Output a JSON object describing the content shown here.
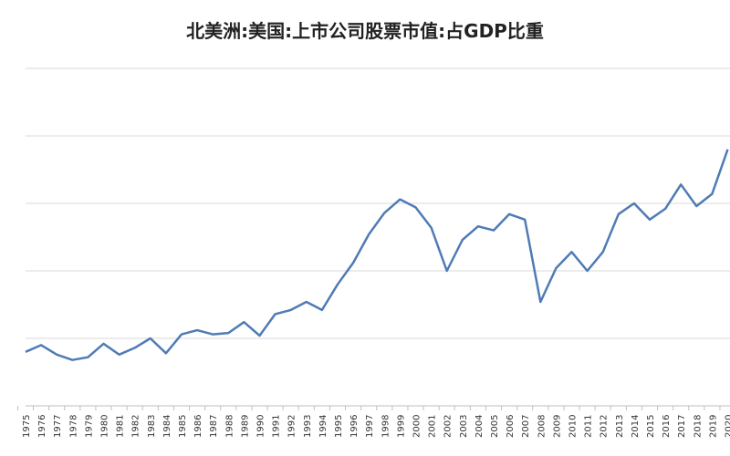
{
  "chart_data": {
    "type": "line",
    "title": "北美洲:美国:上市公司股票市值:占GDP比重",
    "xlabel": "",
    "ylabel": "",
    "ylim": [
      0,
      250
    ],
    "grid": true,
    "legend": "none",
    "colors": {
      "line": "#4f7bb5",
      "grid": "#d9d9d9",
      "axis": "#bfbfbf"
    },
    "x": [
      "1975",
      "1976",
      "1977",
      "1978",
      "1979",
      "1980",
      "1981",
      "1982",
      "1983",
      "1984",
      "1985",
      "1986",
      "1987",
      "1988",
      "1989",
      "1990",
      "1991",
      "1992",
      "1993",
      "1994",
      "1995",
      "1996",
      "1997",
      "1998",
      "1999",
      "2000",
      "2001",
      "2002",
      "2003",
      "2004",
      "2005",
      "2006",
      "2007",
      "2008",
      "2009",
      "2010",
      "2011",
      "2012",
      "2013",
      "2014",
      "2015",
      "2016",
      "2017",
      "2018",
      "2019",
      "2020"
    ],
    "series": [
      {
        "values": [
          40,
          45,
          38,
          34,
          36,
          46,
          38,
          43,
          50,
          39,
          53,
          56,
          53,
          54,
          62,
          52,
          68,
          71,
          77,
          71,
          90,
          106,
          127,
          143,
          153,
          147,
          132,
          100,
          123,
          133,
          130,
          142,
          138,
          77,
          102,
          114,
          100,
          114,
          142,
          150,
          138,
          146,
          164,
          148,
          157,
          190
        ]
      }
    ]
  }
}
